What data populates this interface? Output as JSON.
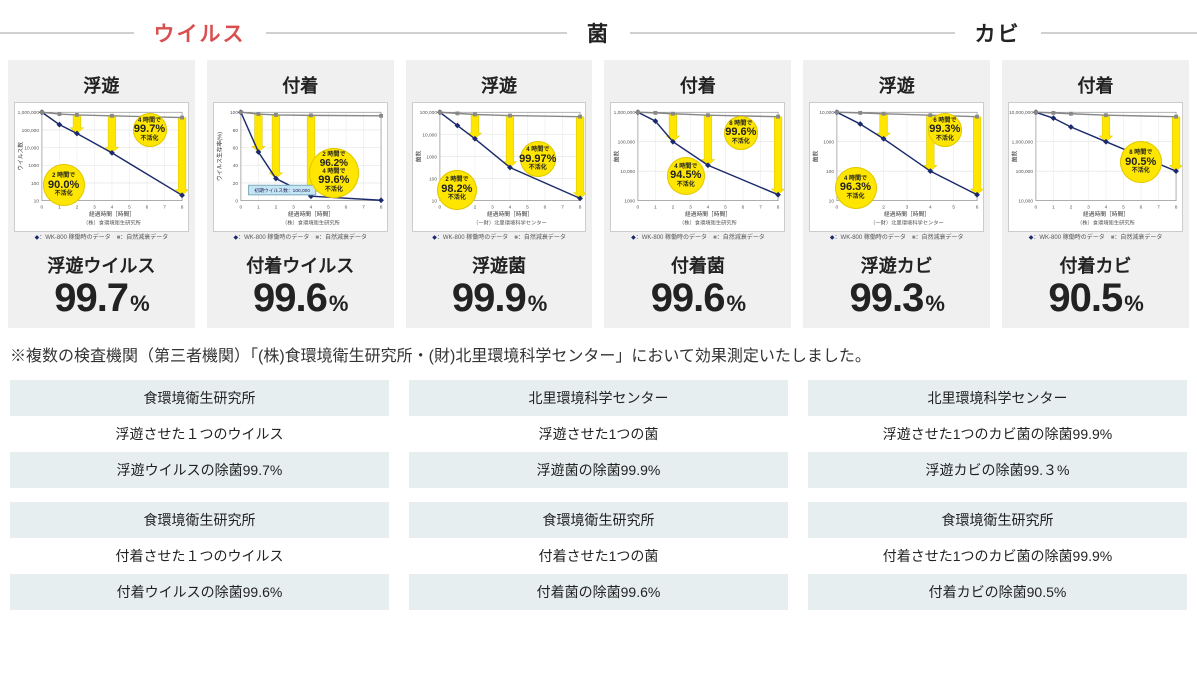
{
  "categories": [
    {
      "label": "ウイルス",
      "color": "#d94f4f"
    },
    {
      "label": "菌",
      "color": "#333333"
    },
    {
      "label": "カビ",
      "color": "#333333"
    }
  ],
  "panels": [
    {
      "title": "浮遊",
      "result_label": "浮遊ウイルス",
      "result_value": "99.7",
      "chart": {
        "type": "line-log",
        "ylabel": "ウイルス数",
        "xlabel": "経過時間［時間］",
        "source": "（株）食環境衛生研究所",
        "xlim": [
          0,
          8
        ],
        "xtick_step": 1,
        "y_log_min_exp": 1,
        "y_log_max_exp": 6,
        "grid_color": "#e0e0e0",
        "bg": "#ffffff",
        "series": [
          {
            "name": "WK-800稼働時のデータ",
            "color": "#1a2a6c",
            "marker": "diamond",
            "points": [
              [
                0,
                6.0
              ],
              [
                1,
                5.3
              ],
              [
                2,
                4.8
              ],
              [
                4,
                3.7
              ],
              [
                8,
                1.3
              ]
            ]
          },
          {
            "name": "自然減衰データ",
            "color": "#888888",
            "marker": "square",
            "points": [
              [
                0,
                6.0
              ],
              [
                1,
                5.9
              ],
              [
                2,
                5.85
              ],
              [
                4,
                5.8
              ],
              [
                8,
                5.7
              ]
            ]
          }
        ],
        "badges": [
          {
            "time": "2 時間で",
            "pct": "90.0%",
            "sub": "不活化",
            "size": 42,
            "left_pct": 16,
            "top_pct": 48
          },
          {
            "time": "4 時間で",
            "pct": "99.7%",
            "sub": "不活化",
            "size": 34,
            "left_pct": 68,
            "top_pct": 8
          }
        ],
        "arrows": [
          [
            2,
            5.85,
            4.8
          ],
          [
            4,
            5.8,
            3.7
          ],
          [
            8,
            5.7,
            1.3
          ]
        ]
      }
    },
    {
      "title": "付着",
      "result_label": "付着ウイルス",
      "result_value": "99.6",
      "chart": {
        "type": "line",
        "ylabel": "ウイルス生存率(%)",
        "xlabel": "経過時間［時間］",
        "source": "（株）食環境衛生研究所",
        "xlim": [
          0,
          8
        ],
        "xtick_step": 1,
        "ylim": [
          0,
          100
        ],
        "ytick_step": 20,
        "grid_color": "#e0e0e0",
        "bg": "#ffffff",
        "series": [
          {
            "name": "WK-800稼働時のデータ",
            "color": "#1a2a6c",
            "marker": "diamond",
            "points": [
              [
                0,
                100
              ],
              [
                1,
                55
              ],
              [
                2,
                25
              ],
              [
                4,
                5
              ],
              [
                8,
                0.4
              ]
            ]
          },
          {
            "name": "自然減衰データ",
            "color": "#888888",
            "marker": "square",
            "points": [
              [
                0,
                100
              ],
              [
                1,
                98
              ],
              [
                2,
                97
              ],
              [
                4,
                96.5
              ],
              [
                8,
                96
              ]
            ]
          }
        ],
        "annotation": "初期ウイルス数：100,000",
        "badges": [
          {
            "time": "2 時間で",
            "pct": "96.2%",
            "sub": "",
            "size": 0
          },
          {
            "time": "4 時間で",
            "pct": "99.6%",
            "sub": "不活化",
            "size": 50,
            "left_pct": 55,
            "top_pct": 35,
            "extra_top": "2 時間で",
            "extra_pct": "96.2%"
          }
        ],
        "arrows": [
          [
            1,
            98,
            55
          ],
          [
            2,
            97,
            25
          ],
          [
            4,
            96.5,
            5
          ]
        ]
      }
    },
    {
      "title": "浮遊",
      "result_label": "浮遊菌",
      "result_value": "99.9",
      "chart": {
        "type": "line-log",
        "ylabel": "菌数",
        "xlabel": "経過時間［時間］",
        "source": "（一財）北里環境科学センター",
        "xlim": [
          0,
          8
        ],
        "xtick_step": 1,
        "y_log_min_exp": 1,
        "y_log_max_exp": 5,
        "grid_color": "#e0e0e0",
        "bg": "#ffffff",
        "series": [
          {
            "name": "WK-800稼働時のデータ",
            "color": "#1a2a6c",
            "marker": "diamond",
            "points": [
              [
                0,
                5.0
              ],
              [
                1,
                4.4
              ],
              [
                2,
                3.8
              ],
              [
                4,
                2.5
              ],
              [
                8,
                1.1
              ]
            ]
          },
          {
            "name": "自然減衰データ",
            "color": "#888888",
            "marker": "square",
            "points": [
              [
                0,
                5.0
              ],
              [
                1,
                4.95
              ],
              [
                2,
                4.9
              ],
              [
                4,
                4.85
              ],
              [
                8,
                4.8
              ]
            ]
          }
        ],
        "badges": [
          {
            "time": "2 時間で",
            "pct": "98.2%",
            "sub": "不活化",
            "size": 40,
            "left_pct": 14,
            "top_pct": 52
          },
          {
            "time": "4 時間で",
            "pct": "99.97%",
            "sub": "不活化",
            "size": 36,
            "left_pct": 62,
            "top_pct": 30
          }
        ],
        "arrows": [
          [
            2,
            4.9,
            3.8
          ],
          [
            4,
            4.85,
            2.5
          ],
          [
            8,
            4.8,
            1.1
          ]
        ]
      }
    },
    {
      "title": "付着",
      "result_label": "付着菌",
      "result_value": "99.6",
      "chart": {
        "type": "line-log",
        "ylabel": "菌数",
        "xlabel": "経過時間［時間］",
        "source": "（株）食環境衛生研究所",
        "xlim": [
          0,
          8
        ],
        "xtick_step": 1,
        "y_log_min_exp": 3,
        "y_log_max_exp": 6,
        "grid_color": "#e0e0e0",
        "bg": "#ffffff",
        "series": [
          {
            "name": "WK-800稼働時のデータ",
            "color": "#1a2a6c",
            "marker": "diamond",
            "points": [
              [
                0,
                6.0
              ],
              [
                1,
                5.7
              ],
              [
                2,
                5.0
              ],
              [
                4,
                4.2
              ],
              [
                8,
                3.2
              ]
            ]
          },
          {
            "name": "自然減衰データ",
            "color": "#888888",
            "marker": "square",
            "points": [
              [
                0,
                6.0
              ],
              [
                1,
                5.98
              ],
              [
                2,
                5.95
              ],
              [
                4,
                5.9
              ],
              [
                8,
                5.85
              ]
            ]
          }
        ],
        "badges": [
          {
            "time": "4 時間で",
            "pct": "94.5%",
            "sub": "不活化",
            "size": 38,
            "left_pct": 32,
            "top_pct": 42
          },
          {
            "time": "8 時間で",
            "pct": "99.6%",
            "sub": "不活化",
            "size": 34,
            "left_pct": 65,
            "top_pct": 10
          }
        ],
        "arrows": [
          [
            2,
            5.95,
            5.0
          ],
          [
            4,
            5.9,
            4.2
          ],
          [
            8,
            5.85,
            3.2
          ]
        ]
      }
    },
    {
      "title": "浮遊",
      "result_label": "浮遊カビ",
      "result_value": "99.3",
      "chart": {
        "type": "line-log",
        "ylabel": "菌数",
        "xlabel": "経過時間［時間］",
        "source": "（一財）北里環境科学センター",
        "xlim": [
          0,
          6
        ],
        "xtick_step": 1,
        "y_log_min_exp": 1,
        "y_log_max_exp": 4,
        "grid_color": "#e0e0e0",
        "bg": "#ffffff",
        "series": [
          {
            "name": "WK-800稼働時のデータ",
            "color": "#1a2a6c",
            "marker": "diamond",
            "points": [
              [
                0,
                4.0
              ],
              [
                1,
                3.6
              ],
              [
                2,
                3.1
              ],
              [
                4,
                2.0
              ],
              [
                6,
                1.2
              ]
            ]
          },
          {
            "name": "自然減衰データ",
            "color": "#888888",
            "marker": "square",
            "points": [
              [
                0,
                4.0
              ],
              [
                1,
                3.98
              ],
              [
                2,
                3.95
              ],
              [
                4,
                3.9
              ],
              [
                6,
                3.85
              ]
            ]
          }
        ],
        "badges": [
          {
            "time": "4 時間で",
            "pct": "96.3%",
            "sub": "不活化",
            "size": 42,
            "left_pct": 14,
            "top_pct": 50
          },
          {
            "time": "6 時間で",
            "pct": "99.3%",
            "sub": "不活化",
            "size": 34,
            "left_pct": 68,
            "top_pct": 8
          }
        ],
        "arrows": [
          [
            2,
            3.95,
            3.1
          ],
          [
            4,
            3.9,
            2.0
          ],
          [
            6,
            3.85,
            1.2
          ]
        ]
      }
    },
    {
      "title": "付着",
      "result_label": "付着カビ",
      "result_value": "90.5",
      "chart": {
        "type": "line-log",
        "ylabel": "菌数",
        "xlabel": "経過時間［時間］",
        "source": "（株）食環境衛生研究所",
        "xlim": [
          0,
          8
        ],
        "xtick_step": 1,
        "y_log_min_exp": 4,
        "y_log_max_exp": 7,
        "grid_color": "#e0e0e0",
        "bg": "#ffffff",
        "series": [
          {
            "name": "WK-800稼働時のデータ",
            "color": "#1a2a6c",
            "marker": "diamond",
            "points": [
              [
                0,
                7.0
              ],
              [
                1,
                6.8
              ],
              [
                2,
                6.5
              ],
              [
                4,
                6.0
              ],
              [
                8,
                5.0
              ]
            ]
          },
          {
            "name": "自然減衰データ",
            "color": "#888888",
            "marker": "square",
            "points": [
              [
                0,
                7.0
              ],
              [
                1,
                6.98
              ],
              [
                2,
                6.95
              ],
              [
                4,
                6.9
              ],
              [
                8,
                6.85
              ]
            ]
          }
        ],
        "badges": [
          {
            "time": "8 時間で",
            "pct": "90.5%",
            "sub": "不活化",
            "size": 42,
            "left_pct": 64,
            "top_pct": 30
          }
        ],
        "arrows": [
          [
            4,
            6.9,
            6.0
          ],
          [
            8,
            6.85,
            5.0
          ]
        ]
      }
    }
  ],
  "footnote": "※複数の検査機関（第三者機関）「(株)食環境衛生研究所・(財)北里環境科学センター」において効果測定いたしました。",
  "tables_row1": [
    {
      "header": "食環境衛生研究所",
      "r1": "浮遊させた１つのウイルス",
      "r2": "浮遊ウイルスの除菌99.7%"
    },
    {
      "header": "北里環境科学センター",
      "r1": "浮遊させた1つの菌",
      "r2": "浮遊菌の除菌99.9%"
    },
    {
      "header": "北里環境科学センター",
      "r1": "浮遊させた1つのカビ菌の除菌99.9%",
      "r2": "浮遊カビの除菌99.３%"
    }
  ],
  "tables_row2": [
    {
      "header": "食環境衛生研究所",
      "r1": "付着させた１つのウイルス",
      "r2": "付着ウイルスの除菌99.6%"
    },
    {
      "header": "食環境衛生研究所",
      "r1": "付着させた1つの菌",
      "r2": "付着菌の除菌99.6%"
    },
    {
      "header": "食環境衛生研究所",
      "r1": "付着させた1つのカビ菌の除菌99.9%",
      "r2": "付着カビの除菌90.5%"
    }
  ],
  "legend": {
    "a": "：WK-800 稼働時のデータ",
    "b": "：自然減衰データ"
  },
  "colors": {
    "panel_bg": "#f0f0f0",
    "badge_bg": "#ffe600",
    "arrow_fill": "#ffe600",
    "arrow_stroke": "#d4c400",
    "table_header_bg": "#e6eef0",
    "table_alt_bg": "#e6eef0"
  }
}
